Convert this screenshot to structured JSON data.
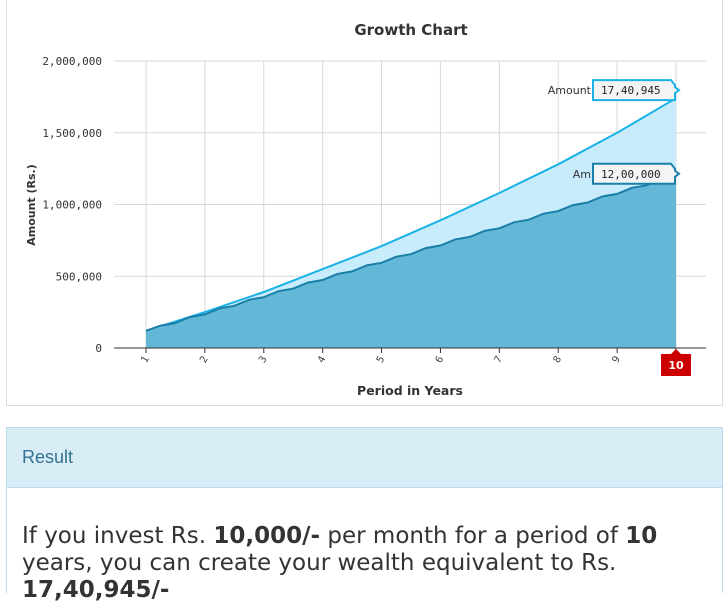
{
  "chart_data": {
    "type": "area",
    "title": "Growth Chart",
    "xlabel": "Period in Years",
    "ylabel": "Amount (Rs.)",
    "x": [
      1,
      2,
      3,
      4,
      5,
      6,
      7,
      8,
      9,
      10
    ],
    "ylim": [
      0,
      2000000
    ],
    "y_ticks": [
      "0",
      "500,000",
      "1,000,000",
      "1,500,000",
      "2,000,000"
    ],
    "x_tick_labels": [
      "1",
      "2",
      "3",
      "4",
      "5",
      "6",
      "7",
      "8",
      "9",
      "10"
    ],
    "highlighted_x": "10",
    "grid": true,
    "series": [
      {
        "name": "Amount",
        "values": [
          120000,
          250000,
          390000,
          550000,
          710000,
          890000,
          1080000,
          1280000,
          1500000,
          1740945
        ],
        "color": "#1ab2e6",
        "fill": "#c8ecfb"
      },
      {
        "name": "Amount",
        "values": [
          120000,
          240000,
          360000,
          480000,
          600000,
          720000,
          840000,
          960000,
          1080000,
          1200000
        ],
        "color": "#1a7fa8",
        "fill": "#63b8d8"
      }
    ],
    "tooltips": [
      {
        "label": "Amount",
        "value": "17,40,945"
      },
      {
        "label": "Am",
        "value": "12,00,000"
      }
    ]
  },
  "result": {
    "title": "Result",
    "text_1": "If you invest Rs. ",
    "monthly_amount": "10,000/-",
    "text_2": " per month for a period of ",
    "years": "10",
    "text_3": " years, you can create your wealth equivalent to Rs. ",
    "final_amount": "17,40,945/-"
  },
  "colors": {
    "title_text": "#333333",
    "highlight_badge": "#cc0000"
  }
}
